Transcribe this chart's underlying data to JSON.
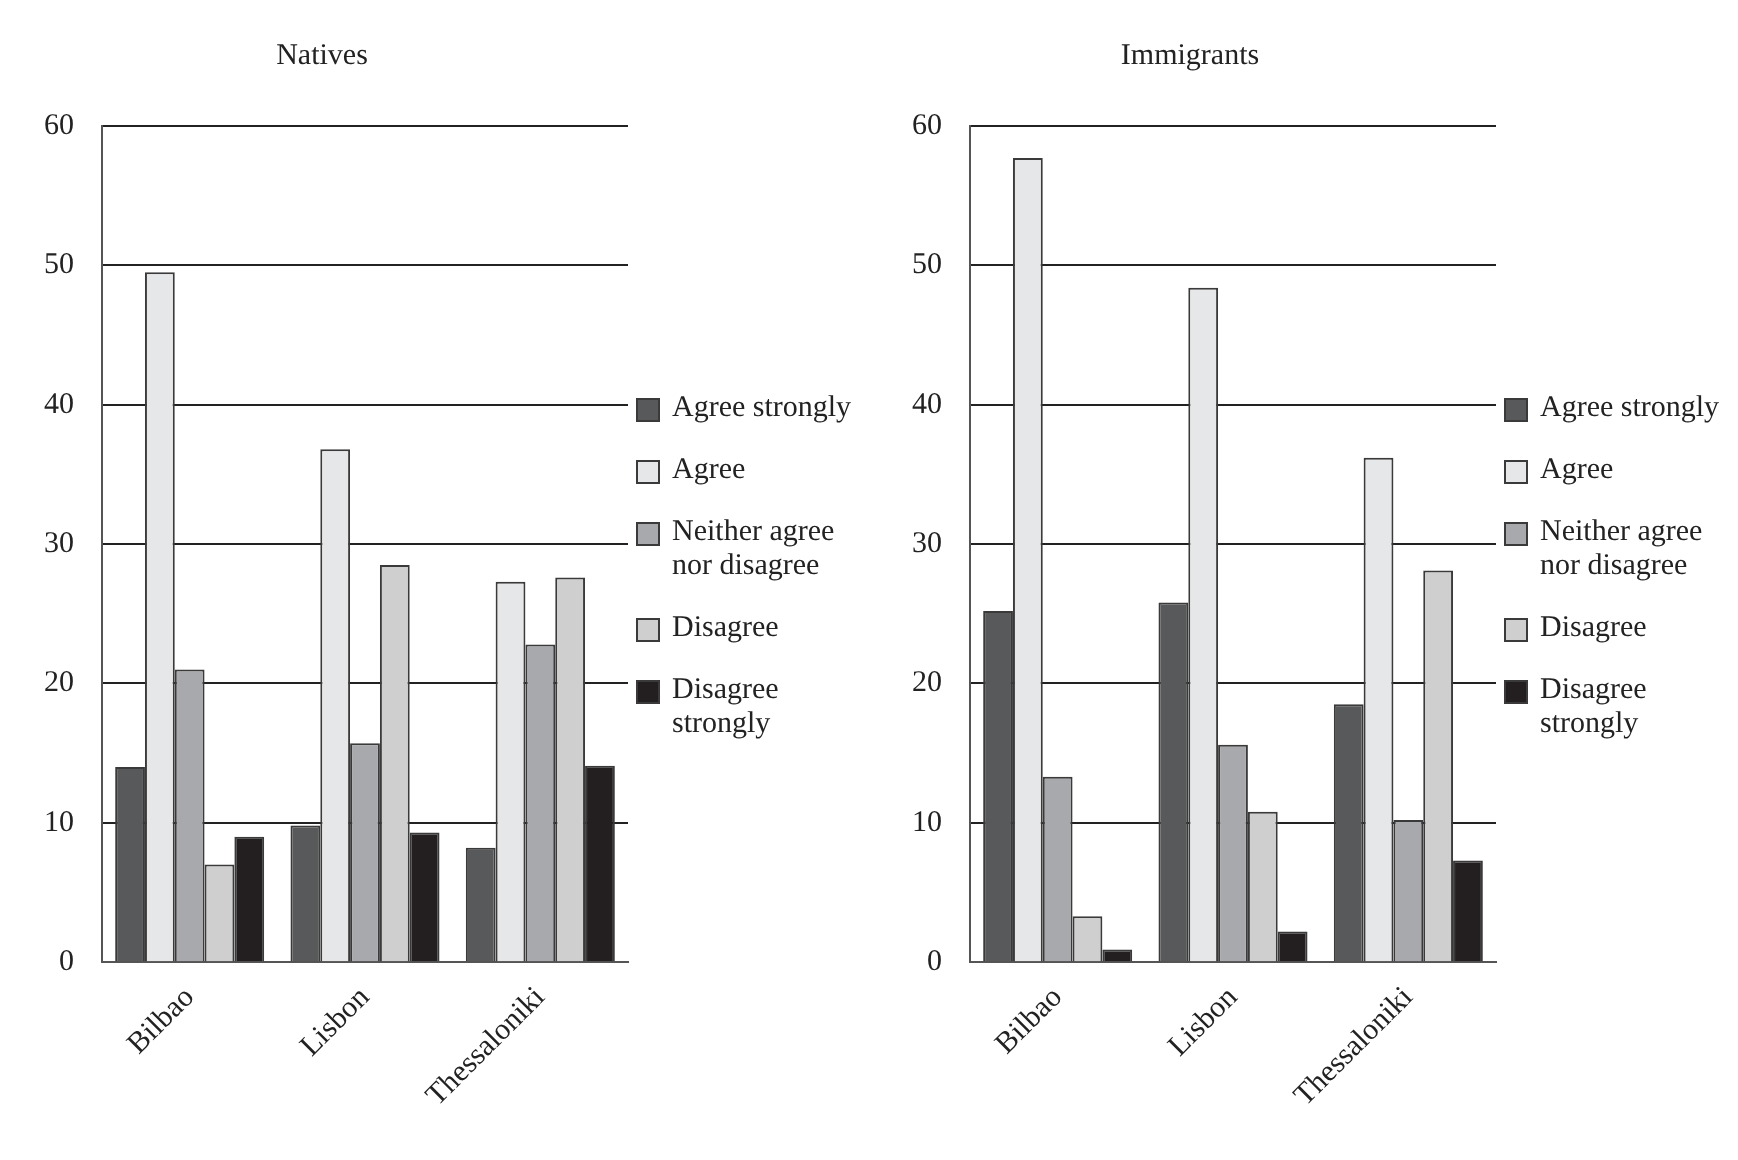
{
  "chart_data": [
    {
      "type": "bar",
      "title": "Natives",
      "categories": [
        "Bilbao",
        "Lisbon",
        "Thessaloniki"
      ],
      "ylim": [
        0,
        60
      ],
      "yticks": [
        0,
        10,
        20,
        30,
        40,
        50,
        60
      ],
      "grid": "y",
      "legend": "right",
      "series": [
        {
          "name": "Agree strongly",
          "color": "#58595b",
          "values": [
            14,
            9.8,
            8.2
          ]
        },
        {
          "name": "Agree",
          "color": "#e6e7e8",
          "values": [
            49.5,
            36.8,
            27.3
          ]
        },
        {
          "name": "Neither agree nor disagree",
          "color": "#a7a9ac",
          "values": [
            21,
            15.7,
            22.8
          ]
        },
        {
          "name": "Disagree",
          "color": "#cfcfcf",
          "values": [
            7,
            28.5,
            27.6
          ]
        },
        {
          "name": "Disagree strongly",
          "color": "#231f20",
          "values": [
            9,
            9.3,
            14.1
          ]
        }
      ]
    },
    {
      "type": "bar",
      "title": "Immigrants",
      "categories": [
        "Bilbao",
        "Lisbon",
        "Thessaloniki"
      ],
      "ylim": [
        0,
        60
      ],
      "yticks": [
        0,
        10,
        20,
        30,
        40,
        50,
        60
      ],
      "grid": "y",
      "legend": "right",
      "series": [
        {
          "name": "Agree strongly",
          "color": "#58595b",
          "values": [
            25.2,
            25.8,
            18.5
          ]
        },
        {
          "name": "Agree",
          "color": "#e6e7e8",
          "values": [
            57.7,
            48.4,
            36.2
          ]
        },
        {
          "name": "Neither agree nor disagree",
          "color": "#a7a9ac",
          "values": [
            13.3,
            15.6,
            10.2
          ]
        },
        {
          "name": "Disagree",
          "color": "#cfcfcf",
          "values": [
            3.3,
            10.8,
            28.1
          ]
        },
        {
          "name": "Disagree strongly",
          "color": "#231f20",
          "values": [
            0.9,
            2.2,
            7.3
          ]
        }
      ]
    }
  ]
}
